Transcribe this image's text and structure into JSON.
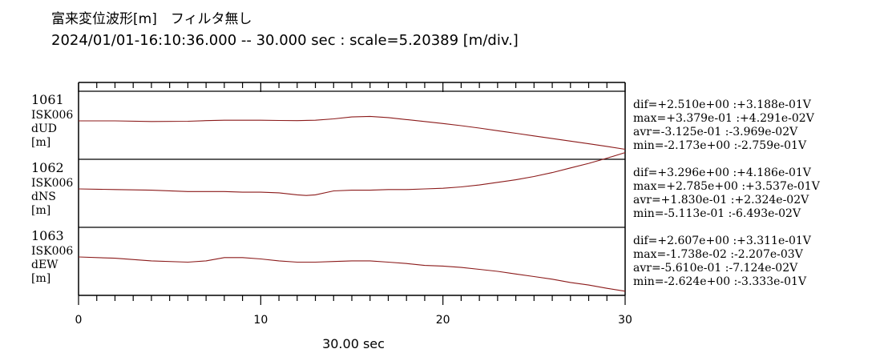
{
  "header": {
    "title": "富来変位波形[m]　フィルタ無し",
    "subtitle": "2024/01/01-16:10:36.000 -- 30.000 sec : scale=5.20389 [m/div.]"
  },
  "chart_data": {
    "type": "line",
    "xlabel": "30.00 sec",
    "xlim": [
      0,
      30
    ],
    "xticks": [
      "0",
      "10",
      "20",
      "30"
    ],
    "line_color": "#8b1a1a",
    "channels": [
      {
        "id": "1061",
        "station": "ISK006",
        "component": "dUD",
        "unit": "[m]",
        "stats": [
          "dif=+2.510e+00 :+3.188e-01V",
          "max=+3.379e-01 :+4.291e-02V",
          "avr=-3.125e-01 :-3.969e-02V",
          "min=-2.173e+00 :-2.759e-01V"
        ],
        "ylim": [
          -2.6,
          2.6
        ],
        "x": [
          0,
          2,
          4,
          6,
          7,
          8,
          9,
          10,
          11,
          12,
          13,
          14,
          15,
          16,
          17,
          18,
          19,
          20,
          21,
          22,
          23,
          24,
          25,
          26,
          27,
          28,
          29,
          30
        ],
        "y": [
          0.0,
          0.0,
          -0.05,
          -0.03,
          0.02,
          0.05,
          0.05,
          0.05,
          0.03,
          0.02,
          0.05,
          0.15,
          0.3,
          0.34,
          0.25,
          0.1,
          -0.05,
          -0.2,
          -0.37,
          -0.55,
          -0.75,
          -0.95,
          -1.15,
          -1.35,
          -1.55,
          -1.75,
          -1.95,
          -2.17
        ]
      },
      {
        "id": "1062",
        "station": "ISK006",
        "component": "dNS",
        "unit": "[m]",
        "stats": [
          "dif=+3.296e+00 :+4.186e-01V",
          "max=+2.785e+00 :+3.537e-01V",
          "avr=+1.830e-01 :+2.324e-02V",
          "min=-5.113e-01 :-6.493e-02V"
        ],
        "ylim": [
          -2.6,
          2.6
        ],
        "x": [
          0,
          2,
          4,
          6,
          7,
          8,
          9,
          10,
          11,
          12,
          12.5,
          13,
          14,
          15,
          16,
          17,
          18,
          19,
          20,
          21,
          22,
          23,
          24,
          25,
          26,
          27,
          28,
          29,
          30
        ],
        "y": [
          0.0,
          -0.05,
          -0.1,
          -0.2,
          -0.2,
          -0.2,
          -0.25,
          -0.25,
          -0.3,
          -0.45,
          -0.5,
          -0.45,
          -0.15,
          -0.1,
          -0.1,
          -0.05,
          -0.05,
          0.0,
          0.05,
          0.15,
          0.3,
          0.5,
          0.7,
          0.95,
          1.25,
          1.6,
          1.95,
          2.35,
          2.78
        ]
      },
      {
        "id": "1063",
        "station": "ISK006",
        "component": "dEW",
        "unit": "[m]",
        "stats": [
          "dif=+2.607e+00 :+3.311e-01V",
          "max=-1.738e-02 :-2.207e-03V",
          "avr=-5.610e-01 :-7.124e-02V",
          "min=-2.624e+00 :-3.333e-01V"
        ],
        "ylim": [
          -2.6,
          2.6
        ],
        "x": [
          0,
          2,
          4,
          6,
          7,
          8,
          9,
          10,
          11,
          12,
          13,
          14,
          15,
          16,
          17,
          18,
          19,
          20,
          21,
          22,
          23,
          24,
          25,
          26,
          27,
          28,
          29,
          30
        ],
        "y": [
          0.0,
          -0.1,
          -0.3,
          -0.4,
          -0.3,
          -0.05,
          -0.05,
          -0.15,
          -0.3,
          -0.4,
          -0.4,
          -0.35,
          -0.3,
          -0.3,
          -0.4,
          -0.5,
          -0.65,
          -0.7,
          -0.8,
          -0.95,
          -1.1,
          -1.3,
          -1.5,
          -1.7,
          -1.95,
          -2.15,
          -2.4,
          -2.62
        ]
      }
    ]
  }
}
